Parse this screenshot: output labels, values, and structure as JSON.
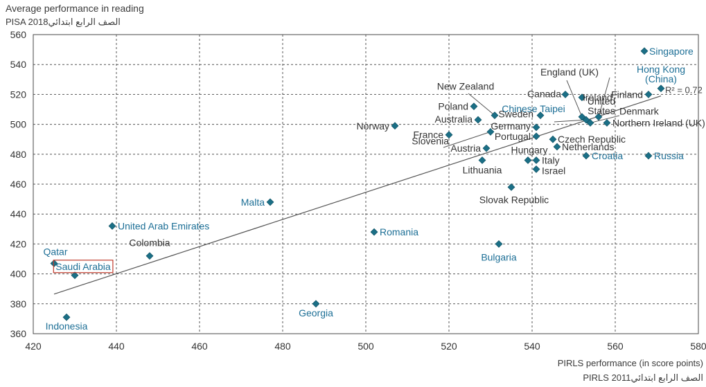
{
  "chart_data": {
    "type": "scatter",
    "ylabel": "Average performance in reading",
    "ylabel_sub": "PISA 2018الصف الرابع ابتدائي",
    "xlabel": "PIRLS performance (in score points)",
    "xlabel_sub": "PIRLS 2011الصف الرابع ابتدائي",
    "xlim": [
      420,
      580
    ],
    "ylim": [
      360,
      560
    ],
    "xticks": [
      420,
      440,
      460,
      480,
      500,
      520,
      540,
      560,
      580
    ],
    "yticks": [
      360,
      380,
      400,
      420,
      440,
      460,
      480,
      500,
      520,
      540,
      560
    ],
    "grid": true,
    "colors": {
      "marker": "#1b6f86",
      "blue_label": "#1d6f96",
      "dark_label": "#333333",
      "highlight_box": "#c0392b",
      "trend": "#555555"
    },
    "trendline": {
      "x": [
        425,
        571
      ],
      "y": [
        386.5,
        519
      ],
      "label": "R² = 0.72"
    },
    "points": [
      {
        "name": "Singapore",
        "x": 567,
        "y": 549,
        "color": "blue"
      },
      {
        "name": "Hong Kong (China)",
        "x": 571,
        "y": 524,
        "color": "blue"
      },
      {
        "name": "Finland",
        "x": 568,
        "y": 520,
        "color": "dark"
      },
      {
        "name": "United States",
        "x": 556,
        "y": 505,
        "color": "dark"
      },
      {
        "name": "England (UK)",
        "x": 552,
        "y": 505,
        "color": "dark"
      },
      {
        "name": "Ireland",
        "x": 552,
        "y": 518,
        "color": "dark"
      },
      {
        "name": "Canada",
        "x": 548,
        "y": 520,
        "color": "dark"
      },
      {
        "name": "Denmark",
        "x": 554,
        "y": 501,
        "color": "dark"
      },
      {
        "name": "Northern Ireland (UK)",
        "x": 558,
        "y": 501,
        "color": "dark"
      },
      {
        "name": "Chinese Taipei",
        "x": 553,
        "y": 503,
        "color": "blue"
      },
      {
        "name": "New Zealand",
        "x": 531,
        "y": 506,
        "color": "dark"
      },
      {
        "name": "Sweden",
        "x": 542,
        "y": 506,
        "color": "dark"
      },
      {
        "name": "Poland",
        "x": 526,
        "y": 512,
        "color": "dark"
      },
      {
        "name": "Australia",
        "x": 527,
        "y": 503,
        "color": "dark"
      },
      {
        "name": "Germany",
        "x": 541,
        "y": 498,
        "color": "dark"
      },
      {
        "name": "Norway",
        "x": 507,
        "y": 499,
        "color": "dark"
      },
      {
        "name": "France",
        "x": 520,
        "y": 493,
        "color": "dark"
      },
      {
        "name": "Portugal",
        "x": 541,
        "y": 492,
        "color": "dark"
      },
      {
        "name": "Czech Republic",
        "x": 545,
        "y": 490,
        "color": "dark"
      },
      {
        "name": "Netherlands",
        "x": 546,
        "y": 485,
        "color": "dark"
      },
      {
        "name": "Slovenia",
        "x": 530,
        "y": 495,
        "color": "dark"
      },
      {
        "name": "Austria",
        "x": 529,
        "y": 484,
        "color": "dark"
      },
      {
        "name": "Hungary",
        "x": 539,
        "y": 476,
        "color": "dark"
      },
      {
        "name": "Italy",
        "x": 541,
        "y": 476,
        "color": "dark"
      },
      {
        "name": "Israel",
        "x": 541,
        "y": 470,
        "color": "dark"
      },
      {
        "name": "Croatia",
        "x": 553,
        "y": 479,
        "color": "blue"
      },
      {
        "name": "Russia",
        "x": 568,
        "y": 479,
        "color": "blue"
      },
      {
        "name": "Lithuania",
        "x": 528,
        "y": 476,
        "color": "dark"
      },
      {
        "name": "Slovak Republic",
        "x": 535,
        "y": 458,
        "color": "dark"
      },
      {
        "name": "Malta",
        "x": 477,
        "y": 448,
        "color": "blue"
      },
      {
        "name": "United Arab Emirates",
        "x": 439,
        "y": 432,
        "color": "blue"
      },
      {
        "name": "Romania",
        "x": 502,
        "y": 428,
        "color": "blue"
      },
      {
        "name": "Bulgaria",
        "x": 532,
        "y": 420,
        "color": "blue"
      },
      {
        "name": "Colombia",
        "x": 448,
        "y": 412,
        "color": "dark"
      },
      {
        "name": "Qatar",
        "x": 425,
        "y": 407,
        "color": "blue"
      },
      {
        "name": "Saudi Arabia",
        "x": 430,
        "y": 399,
        "color": "blue"
      },
      {
        "name": "Georgia",
        "x": 488,
        "y": 380,
        "color": "blue"
      },
      {
        "name": "Indonesia",
        "x": 428,
        "y": 371,
        "color": "blue"
      }
    ]
  }
}
